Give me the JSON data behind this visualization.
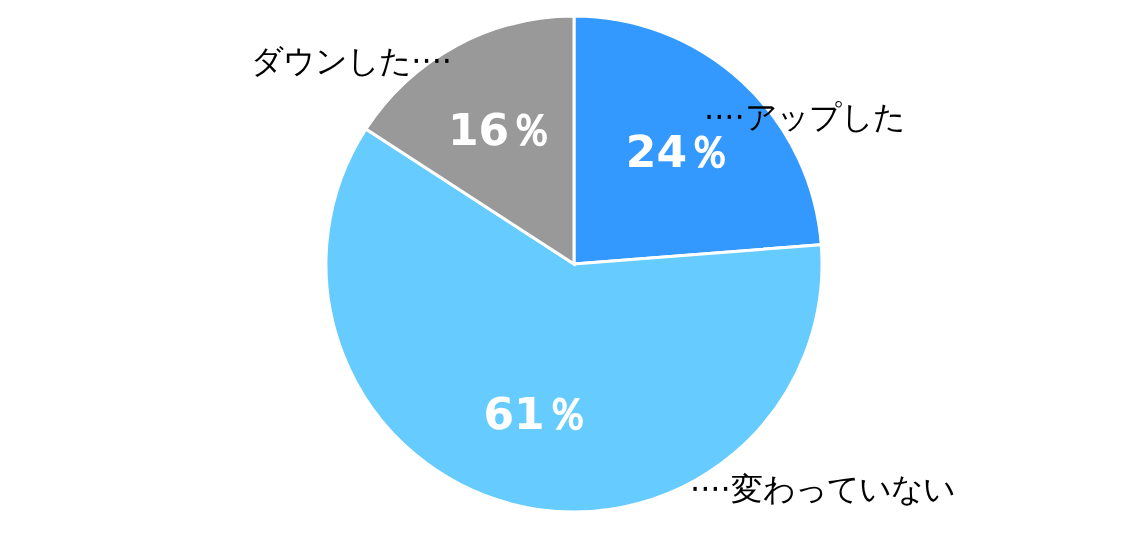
{
  "chart_data": {
    "type": "pie",
    "categories": [
      "····アップした",
      "····変わっていない",
      "ダウンした····"
    ],
    "values": [
      24,
      61,
      16
    ],
    "colors": [
      "#3399ff",
      "#66ccff",
      "#999999"
    ],
    "value_labels": [
      "24％",
      "61％",
      "16％"
    ]
  }
}
